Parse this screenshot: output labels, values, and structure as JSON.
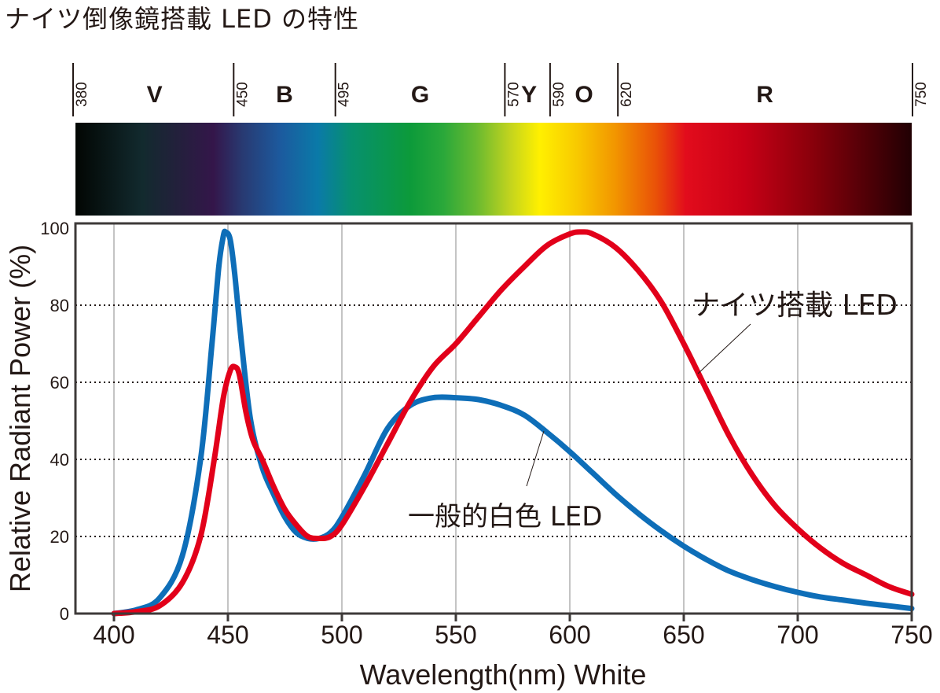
{
  "title": "ナイツ倒像鏡搭載 LED の特性",
  "spectrum_bands": [
    {
      "letter": "V",
      "from": 380,
      "to": 450
    },
    {
      "letter": "B",
      "from": 450,
      "to": 495
    },
    {
      "letter": "G",
      "from": 495,
      "to": 570
    },
    {
      "letter": "Y",
      "from": 570,
      "to": 590
    },
    {
      "letter": "O",
      "from": 590,
      "to": 620
    },
    {
      "letter": "R",
      "from": 620,
      "to": 750
    }
  ],
  "spectrum_boundaries": [
    "380",
    "450",
    "495",
    "570",
    "590",
    "620",
    "750"
  ],
  "chart_data": {
    "type": "line",
    "xlabel": "Wavelength(nm) White",
    "ylabel": "Relative Radiant Power (%)",
    "xlim": [
      400,
      750
    ],
    "ylim": [
      0,
      100
    ],
    "xticks": [
      "400",
      "450",
      "500",
      "550",
      "600",
      "650",
      "700",
      "750"
    ],
    "yticks": [
      "0",
      "20",
      "40",
      "60",
      "80",
      "100"
    ],
    "grid": {
      "vertical": "solid",
      "horizontal": "dotted"
    },
    "series": [
      {
        "name": "一般的白色 LED",
        "color": "#0e6eb8",
        "x": [
          400,
          410,
          420,
          430,
          438,
          443,
          446,
          448,
          449,
          451,
          453,
          456,
          460,
          465,
          470,
          475,
          480,
          485,
          490,
          495,
          500,
          510,
          520,
          530,
          540,
          550,
          560,
          570,
          580,
          590,
          600,
          610,
          620,
          630,
          640,
          650,
          660,
          670,
          680,
          690,
          700,
          710,
          720,
          730,
          740,
          750
        ],
        "y": [
          0,
          1,
          4,
          15,
          40,
          70,
          90,
          98,
          99,
          97,
          88,
          70,
          50,
          38,
          31,
          25,
          21,
          19.5,
          19.5,
          21,
          25,
          36,
          48,
          54,
          56,
          56,
          55.5,
          54,
          51.5,
          47,
          42,
          36.5,
          31,
          26,
          21.5,
          17.5,
          14,
          11,
          8.8,
          7,
          5.5,
          4.3,
          3.5,
          2.7,
          2,
          1.3
        ]
      },
      {
        "name": "ナイツ搭載 LED",
        "color": "#e2001a",
        "x": [
          400,
          410,
          420,
          430,
          438,
          444,
          448,
          451,
          453,
          455,
          458,
          461,
          465,
          470,
          475,
          480,
          485,
          490,
          495,
          500,
          510,
          520,
          530,
          540,
          550,
          560,
          570,
          580,
          590,
          600,
          605,
          610,
          620,
          630,
          640,
          650,
          660,
          670,
          680,
          690,
          700,
          710,
          720,
          730,
          740,
          750
        ],
        "y": [
          0,
          0.5,
          2,
          8,
          20,
          40,
          56,
          63,
          64,
          62,
          52,
          45,
          40,
          33,
          27,
          23,
          20,
          19.5,
          20,
          23,
          33,
          44,
          55,
          64,
          70,
          77,
          84,
          90,
          95.5,
          98.5,
          99,
          98.5,
          95,
          89,
          81,
          70,
          58,
          46,
          36,
          28,
          22,
          17,
          13,
          10,
          7,
          5
        ]
      }
    ],
    "annotations": [
      {
        "text": "ナイツ搭載 LED",
        "points_to": "ナイツ搭載 LED"
      },
      {
        "text": "一般的白色 LED",
        "points_to": "一般的白色 LED"
      }
    ]
  }
}
